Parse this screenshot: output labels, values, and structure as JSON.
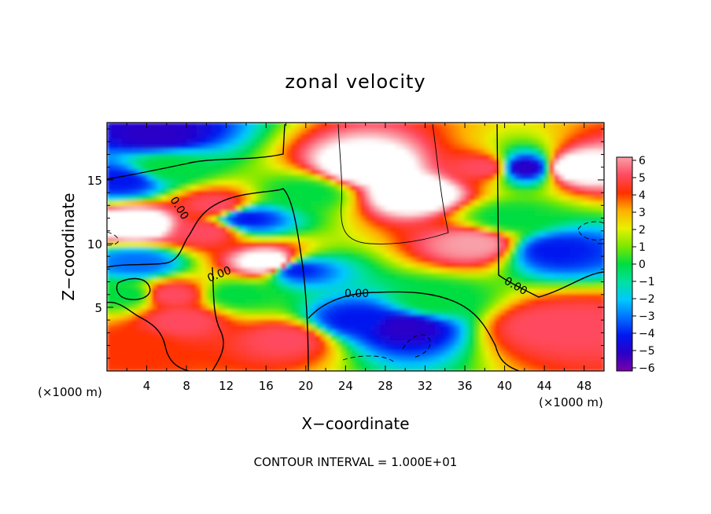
{
  "chart_data": {
    "type": "heatmap",
    "title": "zonal velocity",
    "xlabel": "X−coordinate",
    "ylabel": "Z−coordinate",
    "x_unit": "(×1000 m)",
    "z_unit": "(×1000 m)",
    "xlim": [
      0,
      50
    ],
    "ylim": [
      0,
      19.5
    ],
    "xticks": [
      4,
      8,
      12,
      16,
      20,
      24,
      28,
      32,
      36,
      40,
      44,
      48
    ],
    "yticks": [
      5,
      10,
      15
    ],
    "colorbar": {
      "ticks": [
        6,
        5,
        4,
        3,
        2,
        1,
        0,
        "−1",
        "−2",
        "−3",
        "−4",
        "−5",
        "−6"
      ],
      "range": [
        -6,
        6
      ]
    },
    "contour_labels": [
      "0.00",
      "0.00",
      "0.00",
      "0.00"
    ],
    "footer": "CONTOUR INTERVAL = 1.000E+01",
    "field_features": [
      {
        "x": 26,
        "z": 16,
        "value": 8
      },
      {
        "x": 31,
        "z": 14,
        "value": 8
      },
      {
        "x": 16.5,
        "z": 8.5,
        "value": 8
      },
      {
        "x": 3,
        "z": 11.5,
        "value": 8
      },
      {
        "x": 47,
        "z": 16,
        "value": 8
      },
      {
        "x": 10,
        "z": 11,
        "value": 5
      },
      {
        "x": 11,
        "z": 13,
        "value": 5
      },
      {
        "x": 6.5,
        "z": 6,
        "value": 5
      },
      {
        "x": 7.5,
        "z": 4,
        "value": 5
      },
      {
        "x": 37,
        "z": 10,
        "value": 6
      },
      {
        "x": 38,
        "z": 16,
        "value": 5
      },
      {
        "x": 44,
        "z": 3.5,
        "value": 5
      },
      {
        "x": 47,
        "z": 3.5,
        "value": 5
      },
      {
        "x": 18,
        "z": 2.5,
        "value": 5
      },
      {
        "x": 3,
        "z": 2,
        "value": 4
      },
      {
        "x": 14,
        "z": 12,
        "value": -4
      },
      {
        "x": 19,
        "z": 8,
        "value": -4
      },
      {
        "x": 30,
        "z": 3.5,
        "value": -5
      },
      {
        "x": 25,
        "z": 4,
        "value": -4
      },
      {
        "x": 42,
        "z": 16,
        "value": -5
      },
      {
        "x": 45,
        "z": 9.5,
        "value": -4
      },
      {
        "x": 5,
        "z": 18.5,
        "value": -5
      },
      {
        "x": 1.5,
        "z": 15,
        "value": -4
      },
      {
        "x": 3,
        "z": 8.5,
        "value": -3
      },
      {
        "x": 6,
        "z": 16,
        "value": 0
      },
      {
        "x": 20,
        "z": 14,
        "value": 0
      },
      {
        "x": 13,
        "z": 6,
        "value": 0
      },
      {
        "x": 2,
        "z": 6,
        "value": 0
      },
      {
        "x": 33,
        "z": 5.5,
        "value": 0
      },
      {
        "x": 40.5,
        "z": 12,
        "value": 0
      }
    ]
  }
}
